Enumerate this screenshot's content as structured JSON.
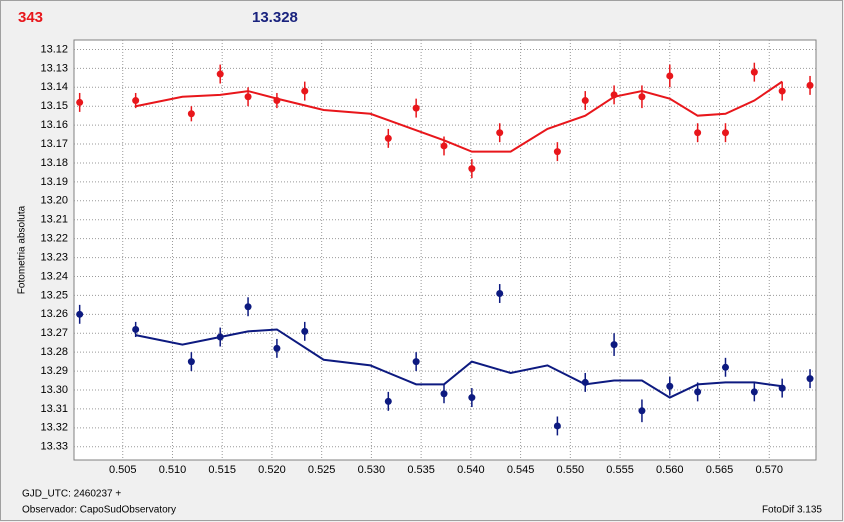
{
  "chart_data": {
    "type": "scatter",
    "titles": [
      {
        "text": "343",
        "color": "#e8161b"
      },
      {
        "text": "13.328",
        "color": "#1a237e"
      }
    ],
    "ylabel": "Fotometria absoluta",
    "footer": [
      "GJD_UTC: 2460237 +",
      "Observador: CapoSudObservatory"
    ],
    "credit": "FotoDif 3.135",
    "xlim": [
      0.5001,
      0.5747
    ],
    "ylim": [
      13.337,
      13.115
    ],
    "grid": true,
    "xticks": [
      0.505,
      {
        "value": 0.51,
        "label": "0.510"
      },
      0.515,
      {
        "value": 0.52,
        "label": "0.520"
      },
      0.525,
      {
        "value": 0.53,
        "label": "0.530"
      },
      0.535,
      {
        "value": 0.54,
        "label": "0.540"
      },
      0.545,
      {
        "value": 0.55,
        "label": "0.550"
      },
      0.555,
      {
        "value": 0.56,
        "label": "0.560"
      },
      0.565,
      {
        "value": 0.57,
        "label": "0.570"
      }
    ],
    "yticks": [
      13.12,
      13.13,
      13.14,
      13.15,
      13.16,
      13.17,
      13.18,
      13.19,
      {
        "value": 13.2,
        "label": "13.20"
      },
      13.21,
      13.22,
      13.23,
      13.24,
      13.25,
      13.26,
      13.27,
      13.28,
      13.29,
      {
        "value": 13.3,
        "label": "13.30"
      },
      13.31,
      13.32,
      13.33
    ],
    "series": [
      {
        "color": "#e8161b",
        "x": [
          0.50067,
          0.5063,
          0.5119,
          0.5148,
          0.5176,
          0.5205,
          0.5233,
          0.5317,
          0.5345,
          0.5373,
          0.5401,
          0.5429,
          0.5487,
          0.5515,
          0.5544,
          0.5572,
          0.56,
          0.5628,
          0.5656,
          0.5685,
          0.5713,
          0.5741
        ],
        "values": [
          13.148,
          13.147,
          13.154,
          13.133,
          13.145,
          13.147,
          13.142,
          13.167,
          13.151,
          13.171,
          13.183,
          13.164,
          13.174,
          13.147,
          13.144,
          13.145,
          13.134,
          13.164,
          13.164,
          13.132,
          13.142,
          13.139
        ],
        "errors": [
          0.005,
          0.004,
          0.004,
          0.005,
          0.005,
          0.004,
          0.005,
          0.005,
          0.005,
          0.005,
          0.005,
          0.005,
          0.005,
          0.005,
          0.005,
          0.006,
          0.006,
          0.005,
          0.005,
          0.005,
          0.005,
          0.005
        ],
        "fit_x": [
          0.5063,
          0.511,
          0.5148,
          0.5176,
          0.5205,
          0.5252,
          0.5299,
          0.5373,
          0.5401,
          0.544,
          0.5477,
          0.5515,
          0.5544,
          0.5572,
          0.56,
          0.5628,
          0.5656,
          0.5685,
          0.5713
        ],
        "fit_values": [
          13.15,
          13.145,
          13.144,
          13.142,
          13.146,
          13.152,
          13.154,
          13.168,
          13.174,
          13.174,
          13.162,
          13.155,
          13.145,
          13.142,
          13.146,
          13.155,
          13.154,
          13.147,
          13.137
        ]
      },
      {
        "color": "#0d1a80",
        "x": [
          0.50067,
          0.5063,
          0.5119,
          0.5148,
          0.5176,
          0.5205,
          0.5233,
          0.5317,
          0.5345,
          0.5373,
          0.5401,
          0.5429,
          0.5487,
          0.5515,
          0.5544,
          0.5572,
          0.56,
          0.5628,
          0.5656,
          0.5685,
          0.5713,
          0.5741
        ],
        "values": [
          13.26,
          13.268,
          13.285,
          13.272,
          13.256,
          13.278,
          13.269,
          13.306,
          13.285,
          13.302,
          13.304,
          13.249,
          13.319,
          13.296,
          13.276,
          13.311,
          13.298,
          13.301,
          13.288,
          13.301,
          13.299,
          13.294
        ],
        "errors": [
          0.005,
          0.004,
          0.005,
          0.005,
          0.005,
          0.005,
          0.005,
          0.005,
          0.005,
          0.005,
          0.005,
          0.005,
          0.005,
          0.005,
          0.006,
          0.006,
          0.005,
          0.005,
          0.005,
          0.005,
          0.005,
          0.005
        ],
        "fit_x": [
          0.5063,
          0.511,
          0.5148,
          0.5176,
          0.5205,
          0.5252,
          0.5299,
          0.5345,
          0.5373,
          0.5401,
          0.544,
          0.5477,
          0.5515,
          0.5544,
          0.5572,
          0.56,
          0.5628,
          0.5656,
          0.5685,
          0.5713
        ],
        "fit_values": [
          13.271,
          13.276,
          13.272,
          13.269,
          13.268,
          13.284,
          13.287,
          13.297,
          13.297,
          13.285,
          13.291,
          13.287,
          13.297,
          13.295,
          13.295,
          13.304,
          13.297,
          13.296,
          13.296,
          13.298
        ]
      }
    ]
  }
}
